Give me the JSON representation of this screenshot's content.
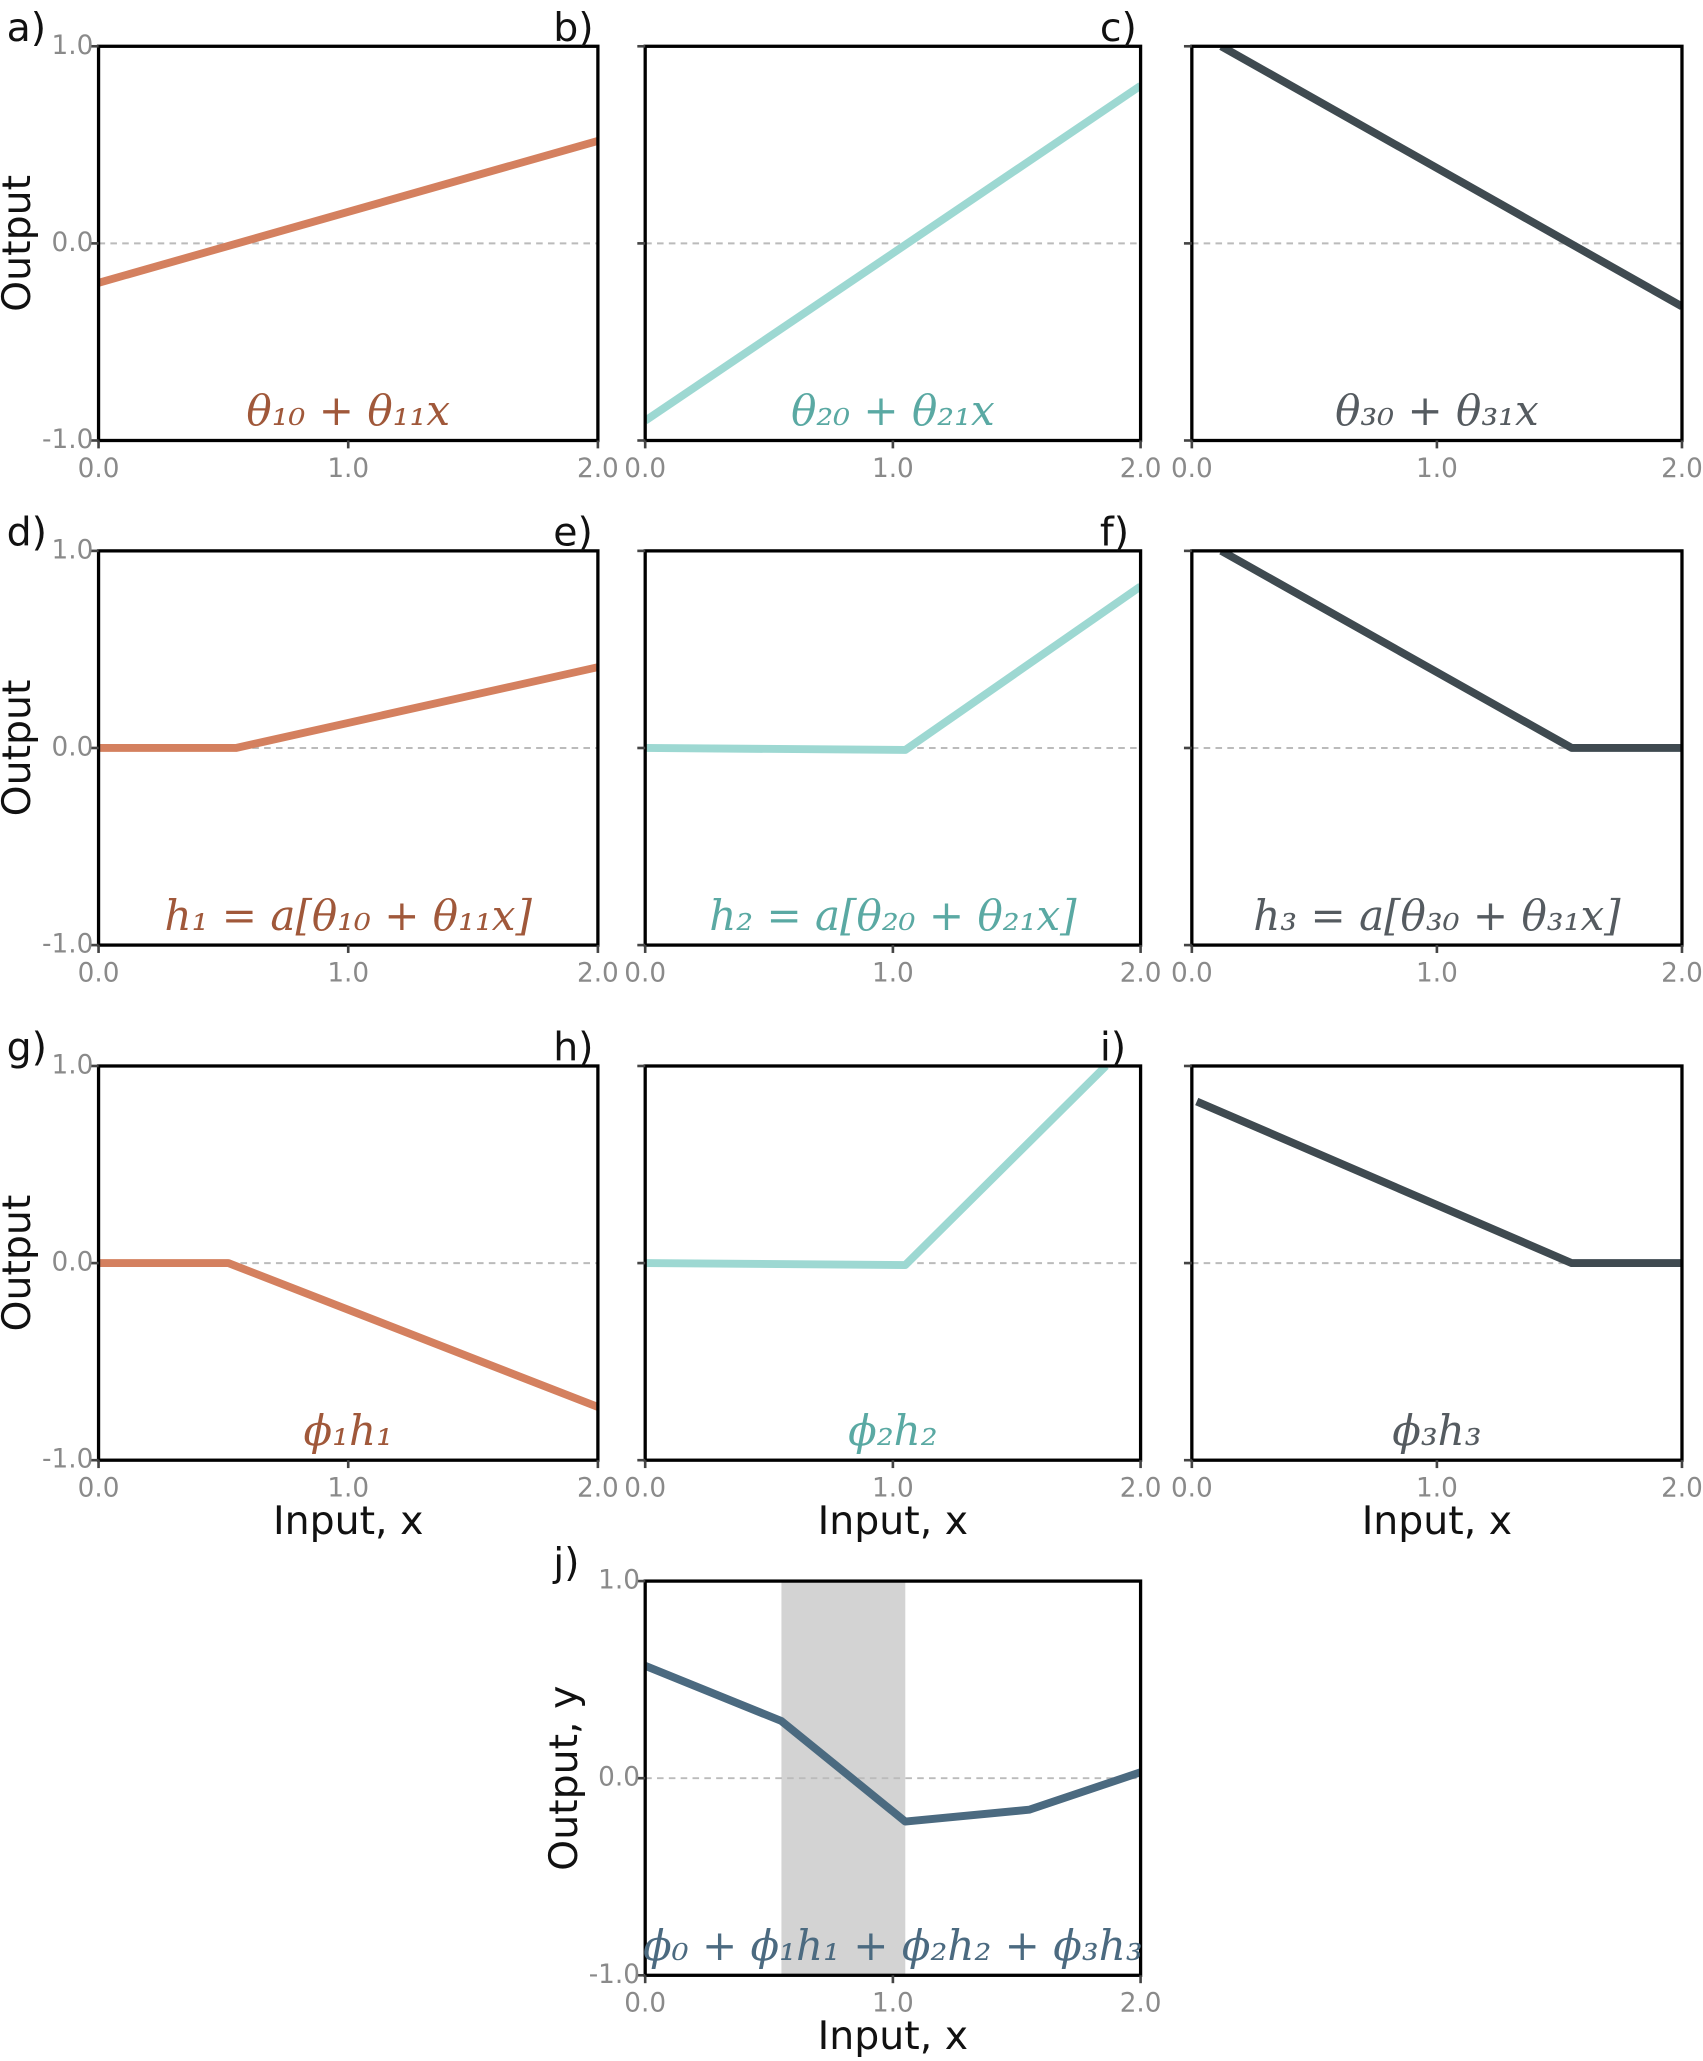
{
  "chart_data": [
    {
      "type": "line",
      "panel": "a)",
      "x": [
        0,
        2
      ],
      "values": [
        -0.2,
        0.52
      ],
      "color": "#d4805f",
      "annotation": "θ₁₀ + θ₁₁x",
      "annotation_color": "#a0583a",
      "ylabel": "Output",
      "xlim": [
        0,
        2
      ],
      "ylim": [
        -1,
        1
      ],
      "xticks": [
        {
          "value": 0,
          "label": "0.0"
        },
        {
          "value": 1,
          "label": "1.0"
        },
        {
          "value": 2,
          "label": "2.0"
        }
      ],
      "yticks": [
        {
          "value": -1,
          "label": "-1.0"
        },
        {
          "value": 0,
          "label": "0.0"
        },
        {
          "value": 1,
          "label": "1.0"
        }
      ],
      "hline": 0
    },
    {
      "type": "line",
      "panel": "b)",
      "x": [
        0,
        2
      ],
      "values": [
        -0.9,
        0.8
      ],
      "color": "#9dd8d2",
      "annotation": "θ₂₀ + θ₂₁x",
      "annotation_color": "#5aa9a3",
      "xlim": [
        0,
        2
      ],
      "ylim": [
        -1,
        1
      ],
      "xticks": [
        {
          "value": 0,
          "label": "0.0"
        },
        {
          "value": 1,
          "label": "1.0"
        },
        {
          "value": 2,
          "label": "2.0"
        }
      ],
      "yticks": [
        -1,
        0,
        1
      ],
      "hline": 0
    },
    {
      "type": "line",
      "panel": "c)",
      "x": [
        0.12,
        2
      ],
      "values": [
        1.0,
        -0.32
      ],
      "color": "#3f4a50",
      "annotation": "θ₃₀ + θ₃₁x",
      "annotation_color": "#555b60",
      "xlim": [
        0,
        2
      ],
      "ylim": [
        -1,
        1
      ],
      "xticks": [
        {
          "value": 0,
          "label": "0.0"
        },
        {
          "value": 1,
          "label": "1.0"
        },
        {
          "value": 2,
          "label": "2.0"
        }
      ],
      "yticks": [
        -1,
        0,
        1
      ],
      "hline": 0
    },
    {
      "type": "line",
      "panel": "d)",
      "x": [
        0,
        0.55,
        2
      ],
      "values": [
        0,
        0,
        0.41
      ],
      "color": "#d4805f",
      "annotation": "h₁ = a[θ₁₀ + θ₁₁x]",
      "annotation_color": "#a0583a",
      "ylabel": "Output",
      "xlim": [
        0,
        2
      ],
      "ylim": [
        -1,
        1
      ],
      "xticks": [
        {
          "value": 0,
          "label": "0.0"
        },
        {
          "value": 1,
          "label": "1.0"
        },
        {
          "value": 2,
          "label": "2.0"
        }
      ],
      "yticks": [
        {
          "value": -1,
          "label": "-1.0"
        },
        {
          "value": 0,
          "label": "0.0"
        },
        {
          "value": 1,
          "label": "1.0"
        }
      ],
      "hline": 0
    },
    {
      "type": "line",
      "panel": "e)",
      "x": [
        0,
        1.05,
        2
      ],
      "values": [
        0,
        -0.01,
        0.82
      ],
      "color": "#9dd8d2",
      "annotation": "h₂ = a[θ₂₀ + θ₂₁x]",
      "annotation_color": "#5aa9a3",
      "xlim": [
        0,
        2
      ],
      "ylim": [
        -1,
        1
      ],
      "xticks": [
        {
          "value": 0,
          "label": "0.0"
        },
        {
          "value": 1,
          "label": "1.0"
        },
        {
          "value": 2,
          "label": "2.0"
        }
      ],
      "yticks": [
        -1,
        0,
        1
      ],
      "hline": 0
    },
    {
      "type": "line",
      "panel": "f)",
      "x": [
        0.12,
        1.55,
        2
      ],
      "values": [
        1.0,
        0,
        0
      ],
      "color": "#3f4a50",
      "annotation": "h₃ = a[θ₃₀ + θ₃₁x]",
      "annotation_color": "#555b60",
      "xlim": [
        0,
        2
      ],
      "ylim": [
        -1,
        1
      ],
      "xticks": [
        {
          "value": 0,
          "label": "0.0"
        },
        {
          "value": 1,
          "label": "1.0"
        },
        {
          "value": 2,
          "label": "2.0"
        }
      ],
      "yticks": [
        -1,
        0,
        1
      ],
      "hline": 0
    },
    {
      "type": "line",
      "panel": "g)",
      "x": [
        0,
        0.52,
        2
      ],
      "values": [
        0,
        0,
        -0.73
      ],
      "color": "#d4805f",
      "annotation": "ϕ₁h₁",
      "annotation_color": "#a0583a",
      "ylabel": "Output",
      "xlabel": "Input, x",
      "xlim": [
        0,
        2
      ],
      "ylim": [
        -1,
        1
      ],
      "xticks": [
        {
          "value": 0,
          "label": "0.0"
        },
        {
          "value": 1,
          "label": "1.0"
        },
        {
          "value": 2,
          "label": "2.0"
        }
      ],
      "yticks": [
        {
          "value": -1,
          "label": "-1.0"
        },
        {
          "value": 0,
          "label": "0.0"
        },
        {
          "value": 1,
          "label": "1.0"
        }
      ],
      "hline": 0
    },
    {
      "type": "line",
      "panel": "h)",
      "x": [
        0,
        1.05,
        1.86
      ],
      "values": [
        0,
        -0.01,
        1.0
      ],
      "color": "#9dd8d2",
      "annotation": "ϕ₂h₂",
      "annotation_color": "#5aa9a3",
      "xlabel": "Input, x",
      "xlim": [
        0,
        2
      ],
      "ylim": [
        -1,
        1
      ],
      "xticks": [
        {
          "value": 0,
          "label": "0.0"
        },
        {
          "value": 1,
          "label": "1.0"
        },
        {
          "value": 2,
          "label": "2.0"
        }
      ],
      "yticks": [
        -1,
        0,
        1
      ],
      "hline": 0
    },
    {
      "type": "line",
      "panel": "i)",
      "x": [
        0.02,
        1.55,
        2
      ],
      "values": [
        0.82,
        0,
        0
      ],
      "color": "#3f4a50",
      "annotation": "ϕ₃h₃",
      "annotation_color": "#555b60",
      "xlabel": "Input, x",
      "xlim": [
        0,
        2
      ],
      "ylim": [
        -1,
        1
      ],
      "xticks": [
        {
          "value": 0,
          "label": "0.0"
        },
        {
          "value": 1,
          "label": "1.0"
        },
        {
          "value": 2,
          "label": "2.0"
        }
      ],
      "yticks": [
        -1,
        0,
        1
      ],
      "hline": 0
    },
    {
      "type": "line",
      "panel": "j)",
      "x": [
        0,
        0.55,
        1.05,
        1.55,
        2
      ],
      "values": [
        0.57,
        0.29,
        -0.22,
        -0.16,
        0.03
      ],
      "color": "#4b6a80",
      "annotation": "ϕ₀ + ϕ₁h₁ + ϕ₂h₂ + ϕ₃h₃",
      "annotation_color": "#4b6a80",
      "ylabel": "Output, y",
      "xlabel": "Input, x",
      "shade": [
        0.55,
        1.05
      ],
      "shade_color": "#d3d3d3",
      "xlim": [
        0,
        2
      ],
      "ylim": [
        -1,
        1
      ],
      "xticks": [
        {
          "value": 0,
          "label": "0.0"
        },
        {
          "value": 1,
          "label": "1.0"
        },
        {
          "value": 2,
          "label": "2.0"
        }
      ],
      "yticks": [
        {
          "value": -1,
          "label": "-1.0"
        },
        {
          "value": 0,
          "label": "0.0"
        },
        {
          "value": 1,
          "label": "1.0"
        }
      ],
      "hline": 0
    }
  ]
}
